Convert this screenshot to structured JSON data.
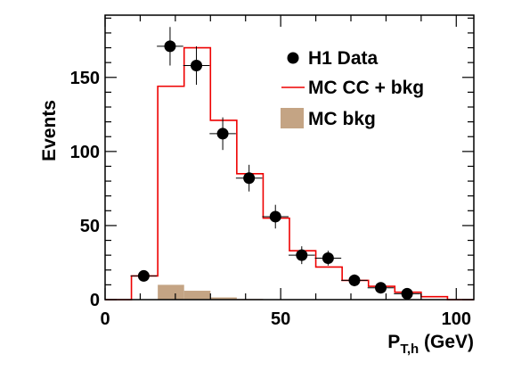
{
  "chart_data": {
    "type": "histogram",
    "xlabel": {
      "main": "P",
      "sub": "T,h",
      "unit": " (GeV)"
    },
    "ylabel": "Events",
    "xlim": [
      0,
      105
    ],
    "ylim": [
      0,
      192
    ],
    "x_ticks": [
      0,
      50,
      100
    ],
    "y_ticks": [
      0,
      50,
      100,
      150
    ],
    "legend_position": "top-right",
    "legend": [
      "H1 Data",
      "MC CC + bkg",
      "MC bkg"
    ],
    "colors": {
      "mc_cc_bkg": "#ee0000",
      "mc_bkg": "#c4a484",
      "data": "#000000"
    },
    "bin_edges": [
      0,
      7.5,
      15,
      22.5,
      30,
      37.5,
      45,
      52.5,
      60,
      67.5,
      75,
      82.5,
      90,
      97.5,
      105
    ],
    "series": [
      {
        "name": "MC CC + bkg",
        "type": "step",
        "values": [
          0,
          16,
          144,
          170,
          121,
          85,
          55,
          33,
          22,
          13,
          9,
          5,
          2,
          0
        ]
      },
      {
        "name": "MC bkg",
        "type": "filled-histogram",
        "values": [
          0,
          0,
          10,
          6,
          1.5,
          0.5,
          0,
          0,
          0,
          0,
          0,
          0,
          0,
          0
        ]
      },
      {
        "name": "H1 Data",
        "type": "points",
        "points": [
          {
            "x": 11,
            "y": 16,
            "err": 3
          },
          {
            "x": 18.5,
            "y": 171,
            "err": 13
          },
          {
            "x": 26,
            "y": 158,
            "err": 13
          },
          {
            "x": 33.5,
            "y": 112,
            "err": 11
          },
          {
            "x": 41,
            "y": 82,
            "err": 9
          },
          {
            "x": 48.5,
            "y": 56,
            "err": 8
          },
          {
            "x": 56,
            "y": 30,
            "err": 6
          },
          {
            "x": 63.5,
            "y": 28,
            "err": 5
          },
          {
            "x": 71,
            "y": 13,
            "err": 4
          },
          {
            "x": 78.5,
            "y": 8,
            "err": 3
          },
          {
            "x": 86,
            "y": 4,
            "err": 2
          }
        ]
      }
    ]
  }
}
